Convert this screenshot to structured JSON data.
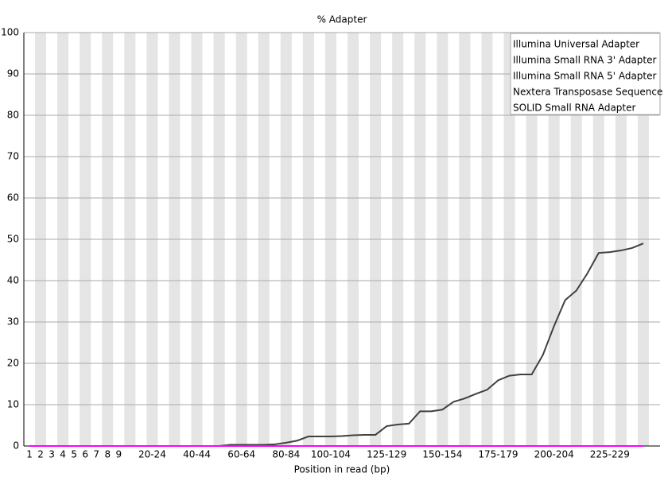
{
  "chart_data": {
    "type": "line",
    "title": "% Adapter",
    "x_label": "Position in read (bp)",
    "categories": [
      "1",
      "2",
      "3",
      "4",
      "5",
      "6",
      "7",
      "8",
      "9",
      null,
      null,
      "20-24",
      null,
      null,
      null,
      "40-44",
      null,
      null,
      null,
      "60-64",
      null,
      null,
      null,
      "80-84",
      null,
      null,
      null,
      "100-104",
      null,
      null,
      null,
      null,
      "125-129",
      null,
      null,
      null,
      null,
      "150-154",
      null,
      null,
      null,
      null,
      "175-179",
      null,
      null,
      null,
      null,
      "200-204",
      null,
      null,
      null,
      null,
      "225-229",
      null,
      null,
      null,
      null
    ],
    "series": [
      {
        "name": "Illumina Universal Adapter",
        "color": "#e00000",
        "values": [
          0,
          0,
          0,
          0,
          0,
          0,
          0,
          0,
          0,
          0,
          0,
          0,
          0,
          0,
          0,
          0,
          0,
          0,
          0,
          0,
          0,
          0,
          0,
          0,
          0,
          0,
          0,
          0,
          0,
          0,
          0,
          0,
          0,
          0,
          0,
          0,
          0,
          0,
          0,
          0,
          0,
          0,
          0,
          0,
          0,
          0,
          0,
          0,
          0,
          0,
          0,
          0,
          0,
          0,
          0,
          0,
          null
        ]
      },
      {
        "name": "Illumina Small RNA 3' Adapter",
        "color": "#0000cc",
        "values": [
          0,
          0,
          0,
          0,
          0,
          0,
          0,
          0,
          0,
          0,
          0,
          0,
          0,
          0,
          0,
          0,
          0,
          0,
          0,
          0,
          0,
          0,
          0,
          0,
          0,
          0,
          0,
          0,
          0,
          0,
          0,
          0,
          0,
          0,
          0,
          0,
          0,
          0,
          0,
          0,
          0,
          0,
          0,
          0,
          0,
          0,
          0,
          0,
          0,
          0,
          0,
          0,
          0,
          0,
          0,
          0,
          null
        ]
      },
      {
        "name": "Illumina Small RNA 5' Adapter",
        "color": "#00cc00",
        "values": [
          0,
          0,
          0,
          0,
          0,
          0,
          0,
          0,
          0,
          0,
          0,
          0,
          0,
          0,
          0,
          0,
          0,
          0,
          0,
          0,
          0,
          0,
          0,
          0,
          0,
          0,
          0,
          0,
          0,
          0,
          0,
          0,
          0,
          0,
          0,
          0,
          0,
          0,
          0,
          0,
          0,
          0,
          0,
          0,
          0,
          0,
          0,
          0,
          0,
          0,
          0,
          0,
          0,
          0,
          0,
          0,
          null
        ]
      },
      {
        "name": "Nextera Transposase Sequence",
        "color": "#404040",
        "values": [
          0,
          0,
          0,
          0,
          0,
          0,
          0,
          0,
          0,
          0,
          0,
          0,
          0,
          0,
          0,
          0,
          0,
          0,
          0.3,
          0.3,
          0.3,
          0.3,
          0.4,
          0.8,
          1.3,
          2.3,
          2.3,
          2.3,
          2.4,
          2.6,
          2.7,
          2.7,
          4.8,
          5.2,
          5.4,
          8.4,
          8.4,
          8.8,
          10.7,
          11.5,
          12.6,
          13.6,
          15.9,
          17,
          17.3,
          17.3,
          22,
          29,
          35.3,
          37.6,
          41.8,
          46.7,
          46.9,
          47.3,
          47.9,
          49,
          null
        ]
      },
      {
        "name": "SOLID Small RNA Adapter",
        "color": "#ff00ff",
        "values": [
          0,
          0,
          0,
          0,
          0,
          0,
          0,
          0,
          0,
          0,
          0,
          0,
          0,
          0,
          0,
          0,
          0,
          0,
          0,
          0,
          0,
          0,
          0,
          0,
          0,
          0,
          0,
          0,
          0,
          0,
          0,
          0,
          0,
          0,
          0,
          0,
          0,
          0,
          0,
          0,
          0,
          0,
          0,
          0,
          0,
          0,
          0,
          0,
          0,
          0,
          0,
          0,
          0,
          0,
          0,
          0,
          null
        ]
      }
    ],
    "ylim": [
      0,
      100
    ],
    "yticks": [
      0,
      10,
      20,
      30,
      40,
      50,
      60,
      70,
      80,
      90,
      100
    ],
    "grid": true,
    "stripes": true,
    "legend": "top-right"
  }
}
